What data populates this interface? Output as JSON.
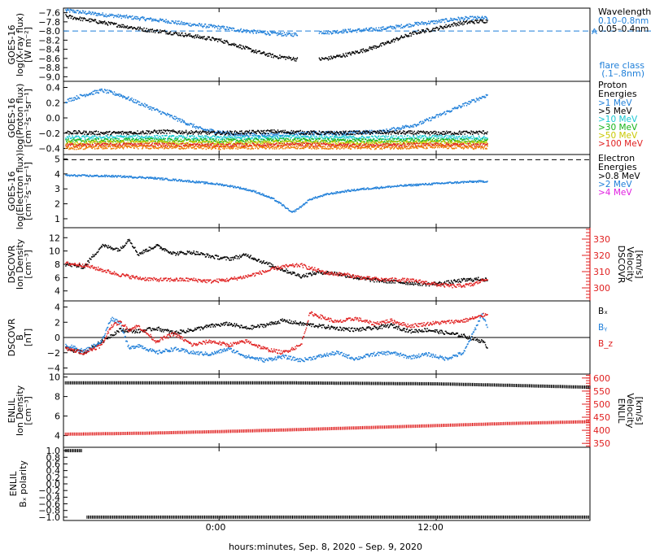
{
  "colors": {
    "black": "#000000",
    "blue": "#1f7fd9",
    "cyan": "#19c8d2",
    "green": "#18b418",
    "yellow": "#c8c800",
    "orange": "#ee7a00",
    "red": "#e02020",
    "magenta": "#e020e0",
    "darkblue": "#1f5fd0"
  },
  "xaxis": {
    "label": "hours:minutes, Sep.  8, 2020 – Sep.  9, 2020",
    "ticks": [
      {
        "label": "0:00",
        "hour": 0
      },
      {
        "label": "12:00",
        "hour": 12
      }
    ],
    "range_hours": [
      -8.6,
      20.5
    ]
  },
  "chart_data": [
    {
      "id": "xray",
      "type": "scatter",
      "ylabel": [
        "GOES-16",
        "log(X-ray flux)",
        "[W m⁻²]"
      ],
      "ylim": [
        -9.1,
        -7.5
      ],
      "yticks": [
        -7.6,
        -7.8,
        -8.0,
        -8.2,
        -8.4,
        -8.6,
        -8.8,
        -9.0
      ],
      "ytick_labels": [
        "−7.6",
        "−7.8",
        "−8.0",
        "−8.2",
        "−8.4",
        "−8.6",
        "−8.8",
        "−9.0"
      ],
      "legend_title": "Wavelength",
      "legend": [
        {
          "label": "0.10–0.8nm",
          "color": "#1f7fd9"
        },
        {
          "label": "0.05–0.4nm",
          "color": "#000000"
        }
      ],
      "flare_marker": {
        "letter": "A",
        "value": -8.0
      },
      "note": [
        "flare class",
        "(.1–.8nm)"
      ],
      "series": [
        {
          "color": "#1f7fd9",
          "x": [
            -8.5,
            -7,
            -5.5,
            -4,
            -3,
            -2,
            -1,
            0,
            1,
            2,
            3,
            4,
            5,
            5.5,
            6,
            7,
            8,
            9,
            10,
            11,
            12,
            13,
            14,
            14.8
          ],
          "y": [
            -7.55,
            -7.62,
            -7.68,
            -7.74,
            -7.78,
            -7.84,
            -7.88,
            -7.92,
            -7.98,
            -8.02,
            -8.06,
            -8.08,
            -8.05,
            -8.02,
            -8.03,
            -8.0,
            -7.98,
            -7.95,
            -7.9,
            -7.84,
            -7.8,
            -7.74,
            -7.72,
            -7.72
          ]
        },
        {
          "color": "#000000",
          "x": [
            -8.5,
            -7,
            -5.5,
            -4,
            -3,
            -2,
            -1,
            0,
            1,
            2,
            3,
            4,
            4.7,
            6,
            7,
            8,
            9,
            10,
            11,
            12,
            13,
            14,
            14.8
          ],
          "y": [
            -7.68,
            -7.78,
            -7.88,
            -7.98,
            -8.02,
            -8.08,
            -8.14,
            -8.2,
            -8.32,
            -8.45,
            -8.55,
            -8.6,
            -8.65,
            -8.6,
            -8.52,
            -8.42,
            -8.3,
            -8.15,
            -8.02,
            -7.95,
            -7.85,
            -7.8,
            -7.78
          ]
        }
      ]
    },
    {
      "id": "protons",
      "type": "scatter",
      "ylabel": [
        "GOES-16",
        "log(Proton flux)",
        "[cm⁻²s⁻¹sr⁻¹]"
      ],
      "ylim": [
        -0.48,
        0.48
      ],
      "yticks": [
        0.4,
        0.2,
        0.0,
        -0.2,
        -0.4
      ],
      "ytick_labels": [
        "0.4",
        "0.2",
        "0.0",
        "−0.2",
        "−0.4"
      ],
      "legend_title": [
        "Proton",
        "Energies"
      ],
      "legend": [
        {
          "label": ">1 MeV",
          "color": "#1f7fd9"
        },
        {
          "label": ">5 MeV",
          "color": "#000000"
        },
        {
          "label": ">10 MeV",
          "color": "#19c8d2"
        },
        {
          "label": ">30 MeV",
          "color": "#18b418"
        },
        {
          "label": ">50 MeV",
          "color": "#c8c800"
        },
        {
          "label": ">100 MeV",
          "color": "#e02020"
        }
      ],
      "series": [
        {
          "color": "#1f7fd9",
          "x": [
            -8.5,
            -7.5,
            -6.5,
            -5.5,
            -4.5,
            -3.5,
            -2.5,
            -1,
            1,
            3,
            5,
            7,
            9,
            11,
            12,
            13,
            14,
            14.8
          ],
          "y": [
            0.22,
            0.3,
            0.36,
            0.3,
            0.2,
            0.1,
            0.0,
            -0.15,
            -0.22,
            -0.22,
            -0.2,
            -0.2,
            -0.18,
            -0.08,
            0.02,
            0.12,
            0.22,
            0.3
          ]
        },
        {
          "color": "#000000",
          "x": [
            -8.5,
            -6,
            -3,
            0,
            3,
            6,
            9,
            12,
            14.8
          ],
          "y": [
            -0.19,
            -0.2,
            -0.18,
            -0.2,
            -0.18,
            -0.2,
            -0.19,
            -0.2,
            -0.19
          ]
        },
        {
          "color": "#19c8d2",
          "x": [
            -8.5,
            -4,
            0,
            4,
            8,
            12,
            14.8
          ],
          "y": [
            -0.26,
            -0.25,
            -0.26,
            -0.25,
            -0.26,
            -0.25,
            -0.26
          ]
        },
        {
          "color": "#18b418",
          "x": [
            -8.5,
            -4,
            0,
            4,
            8,
            12,
            14.8
          ],
          "y": [
            -0.3,
            -0.29,
            -0.3,
            -0.29,
            -0.3,
            -0.29,
            -0.3
          ]
        },
        {
          "color": "#c8c800",
          "x": [
            -8.5,
            -4,
            0,
            4,
            8,
            12,
            14.8
          ],
          "y": [
            -0.33,
            -0.32,
            -0.33,
            -0.32,
            -0.33,
            -0.32,
            -0.33
          ]
        },
        {
          "color": "#e02020",
          "x": [
            -8.5,
            -4,
            0,
            4,
            8,
            12,
            14.8
          ],
          "y": [
            -0.36,
            -0.35,
            -0.36,
            -0.35,
            -0.36,
            -0.35,
            -0.36
          ]
        },
        {
          "color": "#ee7a00",
          "x": [
            -8.5,
            -4,
            0,
            4,
            8,
            12,
            14.8
          ],
          "y": [
            -0.39,
            -0.38,
            -0.39,
            -0.38,
            -0.39,
            -0.38,
            -0.39
          ]
        }
      ]
    },
    {
      "id": "electrons",
      "type": "scatter",
      "ylabel": [
        "GOES-16",
        "log(Electron flux)",
        "[cm⁻²s⁻¹sr⁻¹]"
      ],
      "ylim": [
        0.4,
        5.3
      ],
      "yticks": [
        5,
        4,
        3,
        2,
        1
      ],
      "ytick_labels": [
        "5",
        "4",
        "3",
        "2",
        "1"
      ],
      "threshold": 4.95,
      "legend_title": [
        "Electron",
        "Energies"
      ],
      "legend": [
        {
          "label": ">0.8 MeV",
          "color": "#000000"
        },
        {
          "label": ">2 MeV",
          "color": "#1f7fd9"
        },
        {
          "label": ">4 MeV",
          "color": "#e020e0"
        }
      ],
      "series": [
        {
          "color": "#1f7fd9",
          "x": [
            -8.5,
            -6,
            -4,
            -2,
            0,
            1,
            2,
            3,
            3.5,
            4,
            4.5,
            5,
            6,
            7,
            8,
            9,
            10,
            11,
            12,
            13,
            14,
            14.8
          ],
          "y": [
            3.9,
            3.85,
            3.75,
            3.55,
            3.3,
            3.1,
            2.8,
            2.3,
            1.9,
            1.4,
            1.8,
            2.3,
            2.65,
            2.85,
            3.0,
            3.1,
            3.2,
            3.28,
            3.35,
            3.42,
            3.48,
            3.5
          ]
        }
      ]
    },
    {
      "id": "dscovr_density",
      "type": "scatter",
      "ylabel": [
        "DSCOVR",
        "Ion Density",
        "[cm⁻³]"
      ],
      "ylim": [
        2.5,
        13.5
      ],
      "yticks": [
        12,
        10,
        8,
        6,
        4
      ],
      "ytick_labels": [
        "12",
        "10",
        "8",
        "6",
        "4"
      ],
      "ylabel_right": [
        "DSCOVR",
        "Velocity",
        "[km/s]"
      ],
      "ylim_right": [
        292,
        337
      ],
      "yticks_right": [
        330,
        320,
        310,
        300
      ],
      "ytick_labels_right": [
        "330",
        "320",
        "310",
        "300"
      ],
      "series": [
        {
          "color": "#000000",
          "axis": "left",
          "x": [
            -8.5,
            -7.5,
            -6.5,
            -5.5,
            -5,
            -4.5,
            -3.5,
            -2.5,
            -1.5,
            -0.5,
            0.5,
            1.5,
            2.5,
            3.5,
            4.5,
            5.5,
            6.5,
            7.5,
            8.5,
            9.5,
            10.5,
            11.5,
            12.5,
            13.5,
            14.5,
            14.8
          ],
          "y": [
            8.0,
            7.6,
            10.8,
            10.2,
            11.8,
            9.5,
            10.8,
            9.6,
            9.8,
            9.2,
            8.8,
            9.4,
            8.2,
            7.2,
            6.2,
            6.8,
            6.6,
            6.0,
            5.6,
            5.4,
            5.2,
            5.0,
            5.2,
            5.6,
            5.8,
            5.6
          ]
        },
        {
          "color": "#e02020",
          "axis": "right",
          "x": [
            -8.5,
            -7.5,
            -6.5,
            -5.5,
            -4.5,
            -3.5,
            -2.5,
            -1.5,
            -0.5,
            0.5,
            1.5,
            2.5,
            3.5,
            4.5,
            5,
            6,
            7,
            8,
            9,
            10,
            11,
            12,
            13,
            14,
            14.8
          ],
          "y": [
            315,
            314,
            311,
            308,
            306,
            305,
            305,
            305,
            304,
            305,
            307,
            310,
            313,
            314,
            312,
            309,
            308,
            306,
            305,
            305,
            304,
            302,
            301,
            302,
            306
          ]
        }
      ]
    },
    {
      "id": "dscovr_b",
      "type": "scatter",
      "ylabel": [
        "DSCOVR",
        "B",
        "[nT]"
      ],
      "ylim": [
        -4.8,
        4.8
      ],
      "yticks": [
        4,
        2,
        0,
        -2,
        -4
      ],
      "ytick_labels": [
        "4",
        "2",
        "0",
        "−2",
        "−4"
      ],
      "legend": [
        {
          "label": "Bₓ",
          "color": "#000000"
        },
        {
          "label": "Bᵧ",
          "color": "#1f7fd9"
        },
        {
          "label": "B_z",
          "color": "#e02020"
        }
      ],
      "series": [
        {
          "color": "#000000",
          "x": [
            -8.5,
            -7.5,
            -6.5,
            -5.5,
            -4.5,
            -3.5,
            -2.5,
            -1.5,
            -0.5,
            0.5,
            1.5,
            2.5,
            3.5,
            4.5,
            5.5,
            6.5,
            7.5,
            8.5,
            9.5,
            10.5,
            11.5,
            12.5,
            13.5,
            14.5,
            14.8
          ],
          "y": [
            -1.5,
            -2.0,
            -0.5,
            1.0,
            0.8,
            1.2,
            0.6,
            1.0,
            1.5,
            1.8,
            1.2,
            1.6,
            2.2,
            1.8,
            1.5,
            1.2,
            1.0,
            1.2,
            1.6,
            0.8,
            1.0,
            0.6,
            0.2,
            -0.5,
            -1.2
          ]
        },
        {
          "color": "#1f7fd9",
          "x": [
            -8.5,
            -7.5,
            -6.5,
            -6,
            -5.5,
            -5,
            -4.5,
            -3.5,
            -2.5,
            -1.5,
            -0.5,
            0.5,
            1.5,
            2.5,
            3.5,
            4.5,
            5.5,
            6.5,
            7.5,
            8.5,
            9.5,
            10.5,
            11.5,
            12.5,
            13.5,
            14.5,
            14.8
          ],
          "y": [
            -1.0,
            -1.8,
            -0.5,
            2.5,
            2.0,
            -1.5,
            -1.0,
            -2.0,
            -1.5,
            -2.0,
            -2.2,
            -1.5,
            -2.5,
            -3.0,
            -2.5,
            -3.0,
            -2.5,
            -2.0,
            -2.8,
            -2.2,
            -2.0,
            -2.6,
            -2.2,
            -2.8,
            -2.0,
            3.0,
            1.5
          ]
        },
        {
          "color": "#e02020",
          "x": [
            -8.5,
            -7.5,
            -6.5,
            -6,
            -5.5,
            -5,
            -4.5,
            -3.5,
            -2.5,
            -1.5,
            -0.5,
            0.5,
            1.5,
            2.5,
            3.5,
            4.5,
            5,
            5.5,
            6.5,
            7.5,
            8.5,
            9.5,
            10.5,
            11.5,
            12.5,
            13.5,
            14.5,
            14.8
          ],
          "y": [
            -1.5,
            -2.0,
            -1.0,
            1.5,
            2.0,
            1.0,
            1.5,
            -0.5,
            0.5,
            -1.0,
            -0.5,
            -1.0,
            -0.5,
            -1.5,
            -2.0,
            -1.0,
            3.2,
            2.8,
            2.0,
            2.5,
            1.8,
            2.2,
            1.5,
            1.8,
            2.0,
            2.2,
            2.8,
            3.2
          ]
        }
      ]
    },
    {
      "id": "enlil_density",
      "type": "scatter",
      "ylabel": [
        "ENLIL",
        "Ion Density",
        "[cm⁻³]"
      ],
      "ylim": [
        2.8,
        10.3
      ],
      "yticks": [
        10,
        8,
        6,
        4
      ],
      "ytick_labels": [
        "10",
        "8",
        "6",
        "4"
      ],
      "ylabel_right": [
        "ENLIL",
        "Velocity",
        "[km/s]"
      ],
      "ylim_right": [
        335,
        615
      ],
      "yticks_right": [
        600,
        550,
        500,
        450,
        400,
        350
      ],
      "ytick_labels_right": [
        "600",
        "550",
        "500",
        "450",
        "400",
        "350"
      ],
      "series": [
        {
          "color": "#000000",
          "axis": "left",
          "x": [
            -8.5,
            -4,
            0,
            4,
            8,
            12,
            16,
            20.5
          ],
          "y": [
            9.4,
            9.4,
            9.4,
            9.4,
            9.35,
            9.3,
            9.15,
            8.95
          ]
        },
        {
          "color": "#e02020",
          "axis": "right",
          "x": [
            -8.5,
            -4,
            0,
            4,
            8,
            12,
            16,
            20.5
          ],
          "y": [
            385,
            389,
            395,
            402,
            410,
            418,
            426,
            433
          ]
        }
      ]
    },
    {
      "id": "enlil_polarity",
      "type": "scatter",
      "ylabel": [
        "ENLIL",
        "Bₓ polarity"
      ],
      "ylim": [
        -1.1,
        1.1
      ],
      "yticks": [
        1.0,
        0.8,
        0.6,
        0.4,
        0.2,
        0.0,
        -0.2,
        -0.4,
        -0.6,
        -0.8,
        -1.0
      ],
      "ytick_labels": [
        "1.0",
        "0.8",
        "0.6",
        "0.4",
        "0.2",
        "0.0",
        "−0.2",
        "−0.4",
        "−0.6",
        "−0.8",
        "−1.0"
      ],
      "series": [
        {
          "color": "#000000",
          "x": [
            -8.5,
            -7.6
          ],
          "y": [
            1.0,
            1.0
          ]
        },
        {
          "color": "#000000",
          "x": [
            -7.3,
            20.5
          ],
          "y": [
            -1.0,
            -1.0
          ]
        }
      ]
    }
  ]
}
